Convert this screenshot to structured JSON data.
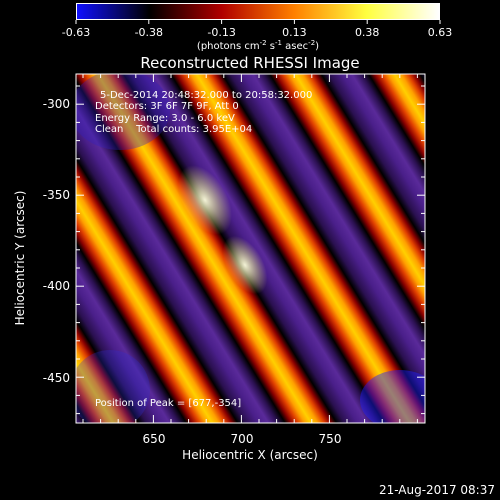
{
  "colorbar": {
    "ticks": [
      "-0.63",
      "-0.38",
      "-0.13",
      "0.13",
      "0.38",
      "0.63"
    ],
    "units_prefix": "(photons cm",
    "units_exp1": "-2",
    "units_mid": " s",
    "units_exp2": "-1",
    "units_mid2": " asec",
    "units_exp3": "-2",
    "units_suffix": ")",
    "colors": [
      "#1010ff",
      "#000000",
      "#b00000",
      "#ff8000",
      "#ffff40",
      "#ffffff"
    ]
  },
  "image": {
    "title": "Reconstructed RHESSI Image",
    "xlabel": "Heliocentric X (arcsec)",
    "ylabel": "Heliocentric Y (arcsec)",
    "xticks": [
      "650",
      "700",
      "750"
    ],
    "yticks": [
      "-300",
      "-350",
      "-400",
      "-450"
    ],
    "annotations": {
      "time": "5-Dec-2014 20:48:32.000 to 20:58:32.000",
      "detectors": "Detectors: 3F 6F 7F 9F, Att 0",
      "energy": "Energy Range: 3.0 - 6.0 keV",
      "clean": "Clean    Total counts: 3.95E+04",
      "peak": "Position of Peak = [677,-354]"
    }
  },
  "footer": {
    "timestamp": "21-Aug-2017 08:37"
  }
}
